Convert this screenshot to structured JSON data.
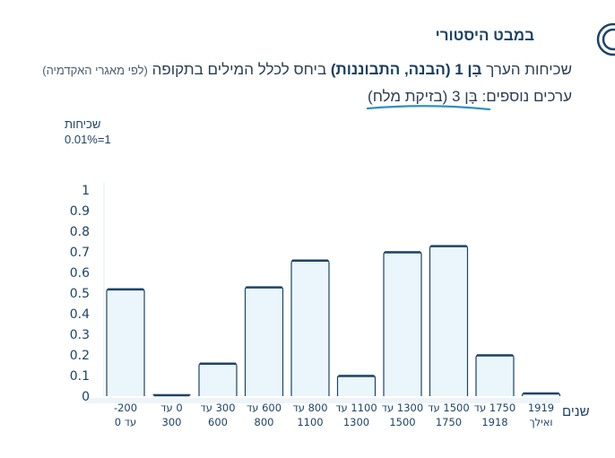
{
  "header": {
    "title": "במבט היסטורי",
    "icon": "history-icon"
  },
  "description": {
    "lead": "שכיחות הערך",
    "root": "בָּן 1 (הבנה, התבוננות)",
    "tail": "ביחס לכלל המילים בתקופה",
    "note": "(לפי מאגרי האקדמיה)"
  },
  "more_values": {
    "label": "ערכים נוספים:",
    "link": "בָּן 3 (בזיקת מלח)"
  },
  "chart_data": {
    "type": "bar",
    "title": "",
    "ylabel": "שכיחות",
    "yunit": "0.01%=1",
    "xlabel": "שנים",
    "ylim": [
      0,
      1
    ],
    "yticks": [
      "0",
      "0.1",
      "0.2",
      "0.3",
      "0.4",
      "0.5",
      "0.6",
      "0.7",
      "0.8",
      "0.9",
      "1"
    ],
    "categories": [
      [
        "‎-200",
        "עד 0"
      ],
      [
        "0 עד",
        "300"
      ],
      [
        "300 עד",
        "600"
      ],
      [
        "600 עד",
        "800"
      ],
      [
        "800 עד",
        "1100"
      ],
      [
        "1100 עד",
        "1300"
      ],
      [
        "1300 עד",
        "1500"
      ],
      [
        "1500 עד",
        "1750"
      ],
      [
        "1750 עד",
        "1918"
      ],
      [
        "1919",
        "ואילך"
      ]
    ],
    "values": [
      0.52,
      0.005,
      0.16,
      0.53,
      0.66,
      0.1,
      0.7,
      0.73,
      0.2,
      0.015
    ],
    "colors": {
      "bar_fill": "#eaf5fc",
      "bar_stroke": "#1d4466",
      "accent": "#1d4466"
    }
  }
}
